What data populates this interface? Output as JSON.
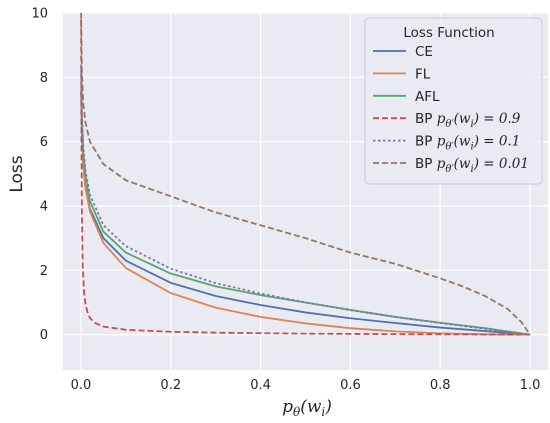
{
  "chart_data": {
    "type": "line",
    "xlabel": "p_θ(w_i)",
    "ylabel": "Loss",
    "xlim": [
      -0.04,
      1.04
    ],
    "ylim": [
      -1.1,
      10
    ],
    "x_ticks": [
      0.0,
      0.2,
      0.4,
      0.6,
      0.8,
      1.0
    ],
    "x_tick_labels": [
      "0.0",
      "0.2",
      "0.4",
      "0.6",
      "0.8",
      "1.0"
    ],
    "y_ticks": [
      0,
      2,
      4,
      6,
      8,
      10
    ],
    "y_tick_labels": [
      "0",
      "2",
      "4",
      "6",
      "8",
      "10"
    ],
    "grid": true,
    "background": "#eaeaf2",
    "legend": {
      "title": "Loss Function",
      "placement": "top-right"
    },
    "series": [
      {
        "name": "CE",
        "color": "#4c72b0",
        "dash": "solid",
        "x": [
          0.0005,
          0.002,
          0.005,
          0.01,
          0.02,
          0.05,
          0.1,
          0.2,
          0.3,
          0.4,
          0.5,
          0.6,
          0.7,
          0.8,
          0.9,
          1.0
        ],
        "y": [
          7.6,
          6.21,
          5.3,
          4.61,
          3.91,
          3.0,
          2.3,
          1.61,
          1.2,
          0.92,
          0.69,
          0.51,
          0.36,
          0.22,
          0.11,
          0.0
        ]
      },
      {
        "name": "FL",
        "color": "#dd8452",
        "dash": "solid",
        "x": [
          0.0005,
          0.002,
          0.005,
          0.01,
          0.02,
          0.05,
          0.1,
          0.2,
          0.3,
          0.4,
          0.5,
          0.6,
          0.7,
          0.8,
          0.9,
          1.0
        ],
        "y": [
          7.59,
          6.2,
          5.27,
          4.56,
          3.83,
          2.85,
          2.07,
          1.29,
          0.84,
          0.55,
          0.35,
          0.2,
          0.1,
          0.04,
          0.01,
          0.0
        ]
      },
      {
        "name": "AFL",
        "color": "#55a868",
        "dash": "solid",
        "x": [
          0.0005,
          0.002,
          0.005,
          0.01,
          0.02,
          0.05,
          0.1,
          0.2,
          0.3,
          0.4,
          0.5,
          0.6,
          0.7,
          0.8,
          0.9,
          1.0
        ],
        "y": [
          8.2,
          6.8,
          5.7,
          4.95,
          4.15,
          3.2,
          2.55,
          1.9,
          1.5,
          1.23,
          1.0,
          0.77,
          0.55,
          0.37,
          0.2,
          0.0
        ]
      },
      {
        "name": "BP p_θ'(w_i) = 0.9",
        "color": "#c44e52",
        "dash": "dashed",
        "x": [
          0.0003,
          0.001,
          0.002,
          0.004,
          0.007,
          0.01,
          0.015,
          0.02,
          0.03,
          0.05,
          0.1,
          0.2,
          0.3,
          0.5,
          0.7,
          1.0
        ],
        "y": [
          9.8,
          6.2,
          3.8,
          2.1,
          1.3,
          0.96,
          0.67,
          0.52,
          0.37,
          0.25,
          0.15,
          0.09,
          0.06,
          0.03,
          0.015,
          0.0
        ]
      },
      {
        "name": "BP p_θ'(w_i) = 0.1",
        "color": "#8172b3",
        "dash": "dotted",
        "x": [
          0.0005,
          0.002,
          0.005,
          0.01,
          0.02,
          0.05,
          0.1,
          0.2,
          0.3,
          0.4,
          0.5,
          0.6,
          0.7,
          0.8,
          0.9,
          1.0
        ],
        "y": [
          8.4,
          7.0,
          5.9,
          5.1,
          4.35,
          3.4,
          2.75,
          2.05,
          1.6,
          1.28,
          1.0,
          0.76,
          0.55,
          0.36,
          0.18,
          0.0
        ]
      },
      {
        "name": "BP p_θ'(w_i) = 0.01",
        "color": "#937860",
        "dash": "dashed",
        "x": [
          0.0003,
          0.002,
          0.005,
          0.01,
          0.02,
          0.05,
          0.1,
          0.2,
          0.3,
          0.4,
          0.5,
          0.6,
          0.7,
          0.8,
          0.85,
          0.9,
          0.95,
          0.98,
          1.0
        ],
        "y": [
          10.0,
          8.2,
          7.2,
          6.6,
          6.0,
          5.3,
          4.8,
          4.3,
          3.8,
          3.4,
          3.0,
          2.55,
          2.2,
          1.75,
          1.5,
          1.2,
          0.8,
          0.4,
          0.0
        ]
      }
    ]
  }
}
